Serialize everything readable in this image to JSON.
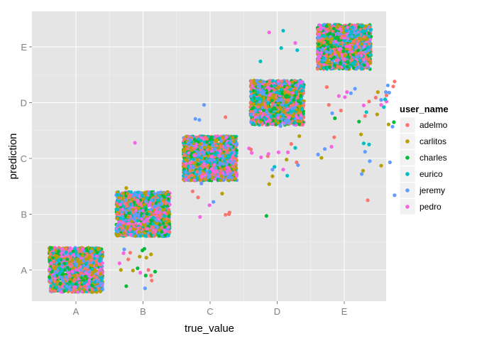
{
  "chart_data": {
    "type": "scatter",
    "xlabel": "true_value",
    "ylabel": "prediction",
    "x_categories": [
      "A",
      "B",
      "C",
      "D",
      "E"
    ],
    "y_categories": [
      "A",
      "B",
      "C",
      "D",
      "E"
    ],
    "jitter": 0.4,
    "grid": true,
    "background": "#e5e5e5",
    "legend": {
      "title": "user_name",
      "placement": "right",
      "entries": [
        {
          "name": "adelmo",
          "color": "#f8766d"
        },
        {
          "name": "carlitos",
          "color": "#b79f00"
        },
        {
          "name": "charles",
          "color": "#00ba38"
        },
        {
          "name": "eurico",
          "color": "#00bfc4"
        },
        {
          "name": "jeremy",
          "color": "#619cff"
        },
        {
          "name": "pedro",
          "color": "#f564e3"
        }
      ]
    },
    "dense_clusters": [
      {
        "true_value": "A",
        "prediction": "A"
      },
      {
        "true_value": "B",
        "prediction": "B"
      },
      {
        "true_value": "C",
        "prediction": "C"
      },
      {
        "true_value": "D",
        "prediction": "D"
      },
      {
        "true_value": "E",
        "prediction": "E"
      }
    ],
    "points": [
      {
        "x": 0.72,
        "y": 0.37,
        "user": "jeremy"
      },
      {
        "x": 0.75,
        "y": 1.47,
        "user": "carlitos"
      },
      {
        "x": 0.88,
        "y": 2.28,
        "user": "pedro"
      },
      {
        "x": 1.13,
        "y": 1.25,
        "user": "jeremy"
      },
      {
        "x": 1.18,
        "y": 1.14,
        "user": "jeremy"
      },
      {
        "x": 1.23,
        "y": 1.16,
        "user": "jeremy"
      },
      {
        "x": 1.2,
        "y": 1.04,
        "user": "pedro"
      },
      {
        "x": 0.93,
        "y": 0.99,
        "user": "jeremy"
      },
      {
        "x": 0.62,
        "y": 0.69,
        "user": "jeremy"
      },
      {
        "x": 0.71,
        "y": 0.3,
        "user": "pedro"
      },
      {
        "x": 0.65,
        "y": 0.12,
        "user": "pedro"
      },
      {
        "x": 0.99,
        "y": 0.35,
        "user": "charles"
      },
      {
        "x": 1.02,
        "y": 0.38,
        "user": "charles"
      },
      {
        "x": 0.81,
        "y": 0.31,
        "user": "adelmo"
      },
      {
        "x": 0.78,
        "y": 0.19,
        "user": "adelmo"
      },
      {
        "x": 0.95,
        "y": 0.24,
        "user": "carlitos"
      },
      {
        "x": 1.05,
        "y": 0.22,
        "user": "carlitos"
      },
      {
        "x": 1.12,
        "y": 0.28,
        "user": "carlitos"
      },
      {
        "x": 0.67,
        "y": 0.0,
        "user": "carlitos"
      },
      {
        "x": 0.85,
        "y": -0.01,
        "user": "carlitos"
      },
      {
        "x": 0.92,
        "y": 0.03,
        "user": "charles"
      },
      {
        "x": 0.96,
        "y": -0.05,
        "user": "pedro"
      },
      {
        "x": 1.08,
        "y": 0.0,
        "user": "adelmo"
      },
      {
        "x": 1.18,
        "y": -0.03,
        "user": "charles"
      },
      {
        "x": 1.04,
        "y": -0.1,
        "user": "charles"
      },
      {
        "x": 1.12,
        "y": -0.1,
        "user": "adelmo"
      },
      {
        "x": 1.13,
        "y": -0.19,
        "user": "adelmo"
      },
      {
        "x": 0.75,
        "y": -0.29,
        "user": "charles"
      },
      {
        "x": 1.03,
        "y": -0.33,
        "user": "jeremy"
      },
      {
        "x": 1.78,
        "y": 2.71,
        "user": "jeremy"
      },
      {
        "x": 1.84,
        "y": 2.69,
        "user": "jeremy"
      },
      {
        "x": 1.91,
        "y": 2.96,
        "user": "jeremy"
      },
      {
        "x": 2.23,
        "y": 2.74,
        "user": "adelmo"
      },
      {
        "x": 1.76,
        "y": 2.06,
        "user": "pedro"
      },
      {
        "x": 1.83,
        "y": 2.06,
        "user": "jeremy"
      },
      {
        "x": 1.73,
        "y": 1.7,
        "user": "adelmo"
      },
      {
        "x": 1.74,
        "y": 1.41,
        "user": "adelmo"
      },
      {
        "x": 1.82,
        "y": 1.3,
        "user": "adelmo"
      },
      {
        "x": 1.87,
        "y": 1.55,
        "user": "jeremy"
      },
      {
        "x": 1.99,
        "y": 1.16,
        "user": "pedro"
      },
      {
        "x": 2.05,
        "y": 1.22,
        "user": "jeremy"
      },
      {
        "x": 2.18,
        "y": 1.37,
        "user": "carlitos"
      },
      {
        "x": 2.28,
        "y": 1.0,
        "user": "adelmo"
      },
      {
        "x": 2.23,
        "y": 0.99,
        "user": "adelmo"
      },
      {
        "x": 1.85,
        "y": 0.95,
        "user": "pedro"
      },
      {
        "x": 2.29,
        "y": 1.03,
        "user": "adelmo"
      },
      {
        "x": 1.63,
        "y": 1.62,
        "user": "pedro"
      },
      {
        "x": 1.64,
        "y": 1.75,
        "user": "jeremy"
      },
      {
        "x": 2.58,
        "y": 2.18,
        "user": "pedro"
      },
      {
        "x": 2.61,
        "y": 2.16,
        "user": "adelmo"
      },
      {
        "x": 2.62,
        "y": 2.1,
        "user": "pedro"
      },
      {
        "x": 2.76,
        "y": 2.02,
        "user": "pedro"
      },
      {
        "x": 2.86,
        "y": 2.04,
        "user": "adelmo"
      },
      {
        "x": 2.87,
        "y": 2.08,
        "user": "pedro"
      },
      {
        "x": 2.93,
        "y": 1.8,
        "user": "jeremy"
      },
      {
        "x": 2.93,
        "y": 1.68,
        "user": "carlitos"
      },
      {
        "x": 2.88,
        "y": 1.54,
        "user": "carlitos"
      },
      {
        "x": 3.02,
        "y": 2.11,
        "user": "pedro"
      },
      {
        "x": 3.09,
        "y": 1.8,
        "user": "pedro"
      },
      {
        "x": 3.16,
        "y": 2.11,
        "user": "pedro"
      },
      {
        "x": 3.21,
        "y": 2.26,
        "user": "adelmo"
      },
      {
        "x": 3.33,
        "y": 2.4,
        "user": "carlitos"
      },
      {
        "x": 3.05,
        "y": 2.58,
        "user": "jeremy"
      },
      {
        "x": 3.01,
        "y": 2.64,
        "user": "carlitos"
      },
      {
        "x": 3.14,
        "y": 1.98,
        "user": "carlitos"
      },
      {
        "x": 2.96,
        "y": 1.85,
        "user": "eurico"
      },
      {
        "x": 3.31,
        "y": 1.88,
        "user": "jeremy"
      },
      {
        "x": 3.29,
        "y": 1.93,
        "user": "adelmo"
      },
      {
        "x": 3.27,
        "y": 2.19,
        "user": "eurico"
      },
      {
        "x": 3.15,
        "y": 1.69,
        "user": "eurico"
      },
      {
        "x": 2.84,
        "y": 0.97,
        "user": "charles"
      },
      {
        "x": 2.75,
        "y": 3.74,
        "user": "eurico"
      },
      {
        "x": 3.06,
        "y": 3.98,
        "user": "eurico"
      },
      {
        "x": 3.09,
        "y": 4.29,
        "user": "eurico"
      },
      {
        "x": 3.3,
        "y": 3.94,
        "user": "eurico"
      },
      {
        "x": 2.88,
        "y": 4.26,
        "user": "pedro"
      },
      {
        "x": 3.27,
        "y": 4.07,
        "user": "pedro"
      },
      {
        "x": 3.74,
        "y": 3.28,
        "user": "adelmo"
      },
      {
        "x": 3.77,
        "y": 2.96,
        "user": "adelmo"
      },
      {
        "x": 3.92,
        "y": 3.12,
        "user": "pedro"
      },
      {
        "x": 4.01,
        "y": 3.1,
        "user": "pedro"
      },
      {
        "x": 4.04,
        "y": 3.19,
        "user": "pedro"
      },
      {
        "x": 4.1,
        "y": 3.17,
        "user": "jeremy"
      },
      {
        "x": 4.16,
        "y": 3.25,
        "user": "jeremy"
      },
      {
        "x": 3.82,
        "y": 2.81,
        "user": "jeremy"
      },
      {
        "x": 3.86,
        "y": 2.72,
        "user": "charles"
      },
      {
        "x": 3.95,
        "y": 2.86,
        "user": "adelmo"
      },
      {
        "x": 3.85,
        "y": 2.38,
        "user": "adelmo"
      },
      {
        "x": 3.81,
        "y": 2.21,
        "user": "pedro"
      },
      {
        "x": 3.71,
        "y": 2.17,
        "user": "jeremy"
      },
      {
        "x": 3.61,
        "y": 2.07,
        "user": "jeremy"
      },
      {
        "x": 3.66,
        "y": 2.01,
        "user": "carlitos"
      },
      {
        "x": 4.22,
        "y": 2.66,
        "user": "charles"
      },
      {
        "x": 4.25,
        "y": 2.43,
        "user": "carlitos"
      },
      {
        "x": 4.29,
        "y": 2.27,
        "user": "eurico"
      },
      {
        "x": 4.37,
        "y": 2.25,
        "user": "eurico"
      },
      {
        "x": 4.31,
        "y": 2.12,
        "user": "jeremy"
      },
      {
        "x": 4.38,
        "y": 1.95,
        "user": "jeremy"
      },
      {
        "x": 4.55,
        "y": 1.87,
        "user": "carlitos"
      },
      {
        "x": 4.68,
        "y": 1.93,
        "user": "jeremy"
      },
      {
        "x": 4.75,
        "y": 1.34,
        "user": "jeremy"
      },
      {
        "x": 4.35,
        "y": 1.25,
        "user": "adelmo"
      },
      {
        "x": 4.26,
        "y": 1.72,
        "user": "jeremy"
      },
      {
        "x": 4.28,
        "y": 1.78,
        "user": "carlitos"
      },
      {
        "x": 4.49,
        "y": 2.79,
        "user": "carlitos"
      },
      {
        "x": 4.47,
        "y": 3.09,
        "user": "adelmo"
      },
      {
        "x": 4.55,
        "y": 3.05,
        "user": "jeremy"
      },
      {
        "x": 4.59,
        "y": 2.92,
        "user": "eurico"
      },
      {
        "x": 4.63,
        "y": 3.02,
        "user": "pedro"
      },
      {
        "x": 4.65,
        "y": 3.31,
        "user": "jeremy"
      },
      {
        "x": 4.73,
        "y": 3.29,
        "user": "adelmo"
      },
      {
        "x": 4.75,
        "y": 3.38,
        "user": "adelmo"
      },
      {
        "x": 4.67,
        "y": 3.18,
        "user": "jeremy"
      },
      {
        "x": 4.63,
        "y": 3.13,
        "user": "adelmo"
      },
      {
        "x": 4.61,
        "y": 3.06,
        "user": "eurico"
      },
      {
        "x": 4.55,
        "y": 2.96,
        "user": "pedro"
      },
      {
        "x": 4.62,
        "y": 3.19,
        "user": "jeremy"
      },
      {
        "x": 4.5,
        "y": 3.19,
        "user": "carlitos"
      },
      {
        "x": 4.37,
        "y": 3.02,
        "user": "adelmo"
      },
      {
        "x": 4.29,
        "y": 2.95,
        "user": "pedro"
      },
      {
        "x": 4.33,
        "y": 2.83,
        "user": "eurico"
      },
      {
        "x": 4.31,
        "y": 2.76,
        "user": "adelmo"
      },
      {
        "x": 4.72,
        "y": 2.57,
        "user": "jeremy"
      },
      {
        "x": 4.74,
        "y": 2.65,
        "user": "charles"
      },
      {
        "x": 4.66,
        "y": 2.61,
        "user": "carlitos"
      }
    ]
  }
}
